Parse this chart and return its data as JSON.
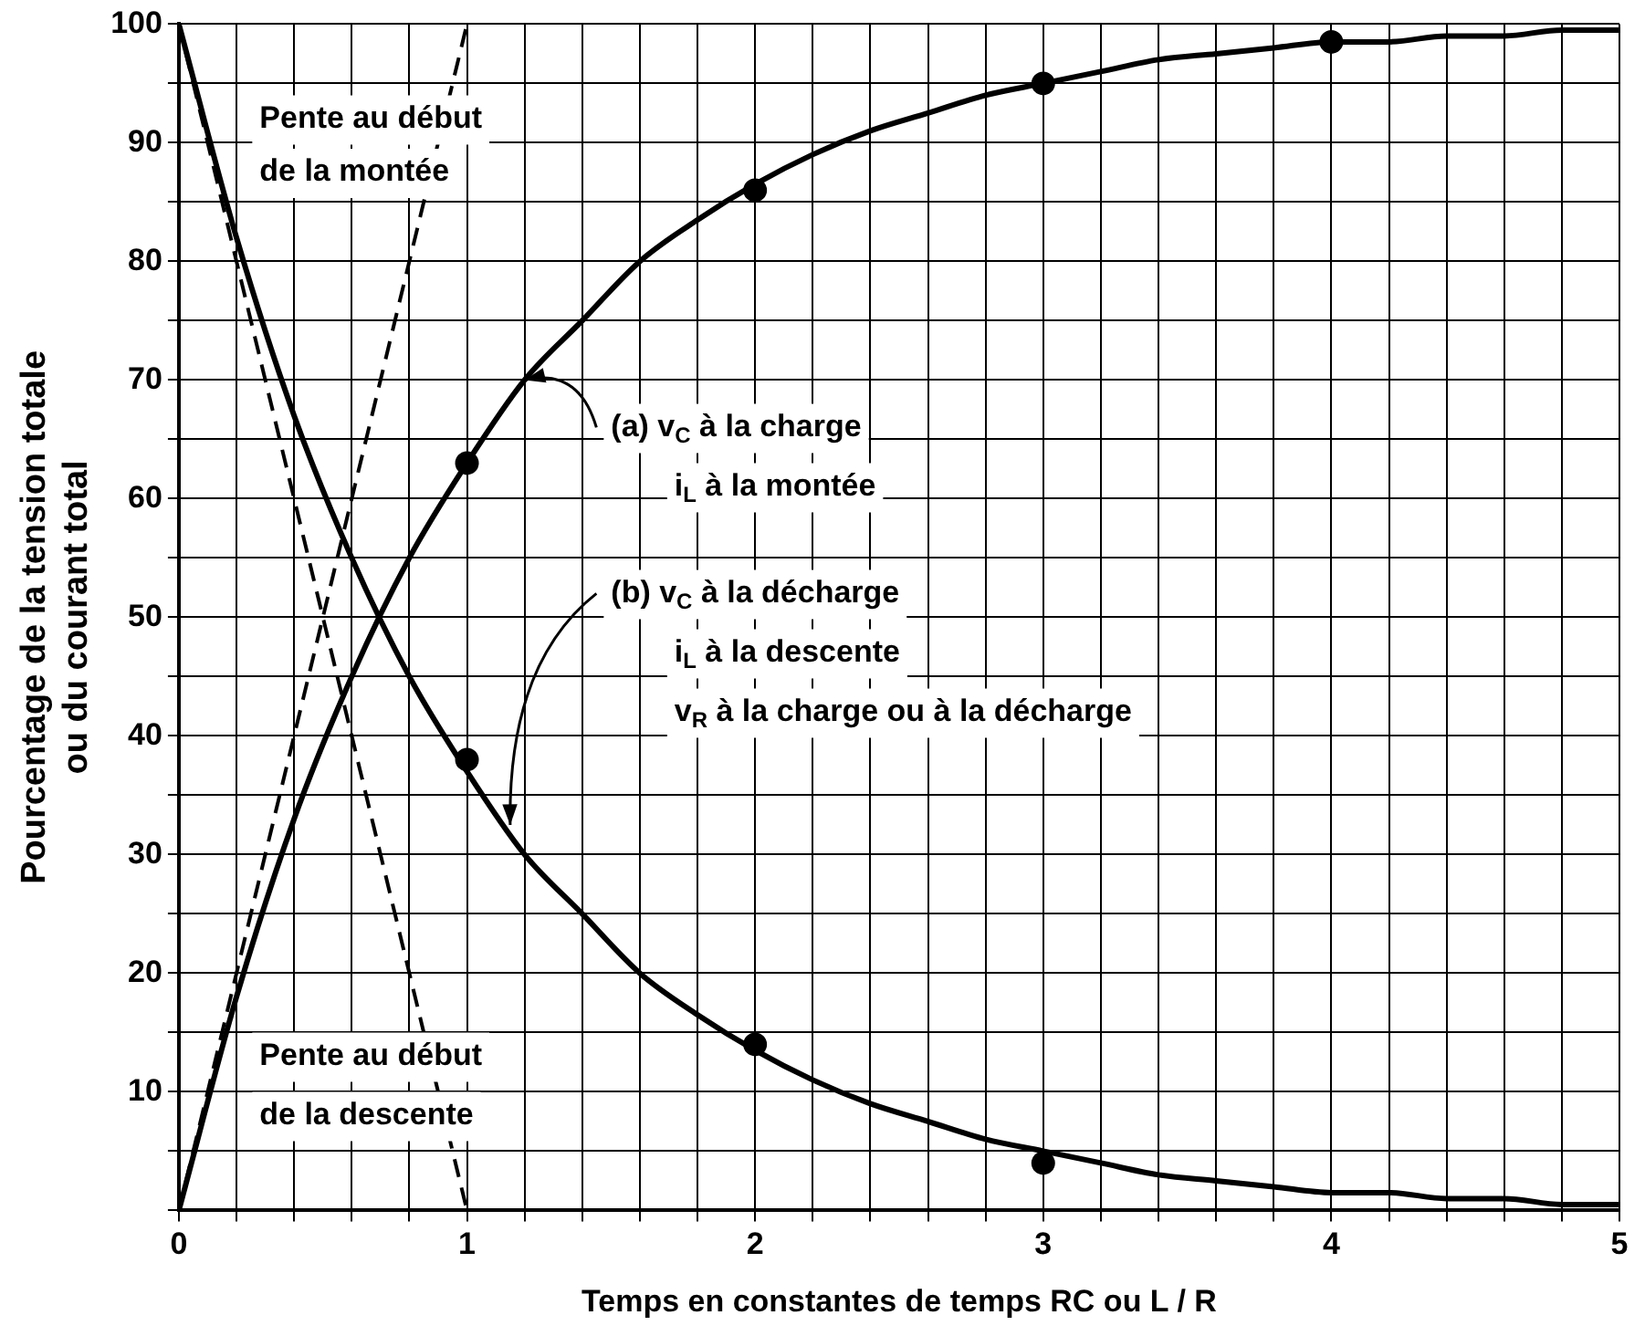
{
  "chart_data": {
    "type": "line",
    "xlabel": "Temps en constantes de temps RC ou L / R",
    "ylabel": "Pourcentage de la tension totale\nou du courant total",
    "xlim": [
      0,
      5
    ],
    "ylim": [
      0,
      100
    ],
    "xticks": [
      {
        "value": 0,
        "label": "0"
      },
      {
        "value": 0.2,
        "label": null
      },
      {
        "value": 0.4,
        "label": null
      },
      {
        "value": 0.6,
        "label": null
      },
      {
        "value": 0.8,
        "label": null
      },
      {
        "value": 1,
        "label": "1"
      },
      {
        "value": 1.2,
        "label": null
      },
      {
        "value": 1.4,
        "label": null
      },
      {
        "value": 1.6,
        "label": null
      },
      {
        "value": 1.8,
        "label": null
      },
      {
        "value": 2,
        "label": "2"
      },
      {
        "value": 2.2,
        "label": null
      },
      {
        "value": 2.4,
        "label": null
      },
      {
        "value": 2.6,
        "label": null
      },
      {
        "value": 2.8,
        "label": null
      },
      {
        "value": 3,
        "label": "3"
      },
      {
        "value": 3.2,
        "label": null
      },
      {
        "value": 3.4,
        "label": null
      },
      {
        "value": 3.6,
        "label": null
      },
      {
        "value": 3.8,
        "label": null
      },
      {
        "value": 4,
        "label": "4"
      },
      {
        "value": 4.2,
        "label": null
      },
      {
        "value": 4.4,
        "label": null
      },
      {
        "value": 4.6,
        "label": null
      },
      {
        "value": 4.8,
        "label": null
      },
      {
        "value": 5,
        "label": "5"
      }
    ],
    "yticks": [
      {
        "value": 0,
        "label": null
      },
      {
        "value": 5,
        "label": null
      },
      10,
      {
        "value": 15,
        "label": null
      },
      20,
      {
        "value": 25,
        "label": null
      },
      30,
      {
        "value": 35,
        "label": null
      },
      40,
      {
        "value": 45,
        "label": null
      },
      50,
      {
        "value": 55,
        "label": null
      },
      60,
      {
        "value": 65,
        "label": null
      },
      70,
      {
        "value": 75,
        "label": null
      },
      80,
      {
        "value": 85,
        "label": null
      },
      90,
      {
        "value": 95,
        "label": null
      },
      100
    ],
    "grid": true,
    "legend": false,
    "marker": "none",
    "series": [
      {
        "color": "#000000",
        "x": [
          0,
          0.2,
          0.4,
          0.6,
          0.8,
          1,
          1.2,
          1.4,
          1.6,
          1.8,
          2,
          2.2,
          2.4,
          2.6,
          2.8,
          3,
          3.2,
          3.4,
          3.6,
          3.8,
          4,
          4.2,
          4.4,
          4.6,
          4.8,
          5
        ],
        "values": [
          0,
          18,
          33,
          45,
          55,
          63,
          70,
          75,
          80,
          83.5,
          86.5,
          89,
          91,
          92.5,
          94,
          95,
          96,
          97,
          97.5,
          98,
          98.5,
          98.5,
          99,
          99,
          99.5,
          99.5
        ]
      },
      {
        "color": "#000000",
        "x": [
          0,
          0.2,
          0.4,
          0.6,
          0.8,
          1,
          1.2,
          1.4,
          1.6,
          1.8,
          2,
          2.2,
          2.4,
          2.6,
          2.8,
          3,
          3.2,
          3.4,
          3.6,
          3.8,
          4,
          4.2,
          4.4,
          4.6,
          4.8,
          5
        ],
        "values": [
          100,
          82,
          67,
          55,
          45,
          37,
          30,
          25,
          20,
          16.5,
          13.5,
          11,
          9,
          7.5,
          6,
          5,
          4,
          3,
          2.5,
          2,
          1.5,
          1.5,
          1,
          1,
          0.5,
          0.5
        ]
      },
      {
        "type": "scatter",
        "marker": "circle",
        "color": "#000000",
        "x": [
          1,
          2,
          3,
          4
        ],
        "values": [
          63,
          86,
          95,
          98.5
        ]
      },
      {
        "type": "scatter",
        "marker": "circle",
        "color": "#000000",
        "x": [
          1,
          2,
          3
        ],
        "values": [
          38,
          14,
          4
        ]
      },
      {
        "type": "line",
        "line_style": "dashed",
        "color": "#000000",
        "x": [
          0,
          1
        ],
        "values": [
          0,
          100
        ]
      },
      {
        "type": "line",
        "line_style": "dashed",
        "color": "#000000",
        "x": [
          0,
          1
        ],
        "values": [
          100,
          0
        ]
      }
    ],
    "annotations": [
      "Pente au début",
      "de la montée",
      "Pente au début",
      "de la descente",
      {
        "text": "(a) v$_{C}$ à la charge",
        "x": 1.2,
        "y": 70
      },
      "i$_{L}$ à la montée",
      {
        "text": "(b) v$_{C}$ à la décharge",
        "x": 1.15,
        "y": 32.5
      },
      "i$_{L}$ à la descente",
      "v$_{R}$ à la charge ou à la décharge"
    ]
  }
}
